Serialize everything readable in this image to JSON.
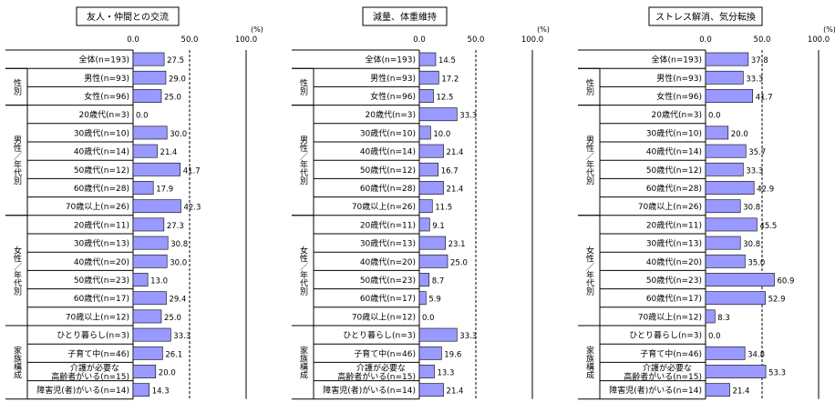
{
  "unit": "(%)",
  "axis_ticks": [
    "0.0",
    "50.0",
    "100.0"
  ],
  "rows": [
    {
      "label": "全体(n=193)"
    },
    {
      "label": "男性(n=93)"
    },
    {
      "label": "女性(n=96)"
    },
    {
      "label": "20歳代(n=3)"
    },
    {
      "label": "30歳代(n=10)"
    },
    {
      "label": "40歳代(n=14)"
    },
    {
      "label": "50歳代(n=12)"
    },
    {
      "label": "60歳代(n=28)"
    },
    {
      "label": "70歳以上(n=26)"
    },
    {
      "label": "20歳代(n=11)"
    },
    {
      "label": "30歳代(n=13)"
    },
    {
      "label": "40歳代(n=20)"
    },
    {
      "label": "50歳代(n=23)"
    },
    {
      "label": "60歳代(n=17)"
    },
    {
      "label": "70歳以上(n=12)"
    },
    {
      "label": "ひとり暮らし(n=3)"
    },
    {
      "label": "子育て中(n=46)"
    },
    {
      "label": "介護が必要な\n高齢者がいる(n=15)"
    },
    {
      "label": "障害児(者)がいる(n=14)"
    }
  ],
  "groups": [
    {
      "label": "性別",
      "from": 1,
      "to": 2
    },
    {
      "label": "男性／年代別",
      "from": 3,
      "to": 8
    },
    {
      "label": "女性／年代別",
      "from": 9,
      "to": 14
    },
    {
      "label": "家族構成",
      "from": 15,
      "to": 18
    }
  ],
  "bar_color": "#9999ff",
  "chart_data": [
    {
      "type": "bar",
      "title": "友人・仲間との交流",
      "xlim": [
        0,
        100
      ],
      "reference_line": 50,
      "categories": [
        "全体(n=193)",
        "男性(n=93)",
        "女性(n=96)",
        "男性20歳代(n=3)",
        "男性30歳代(n=10)",
        "男性40歳代(n=14)",
        "男性50歳代(n=12)",
        "男性60歳代(n=28)",
        "男性70歳以上(n=26)",
        "女性20歳代(n=11)",
        "女性30歳代(n=13)",
        "女性40歳代(n=20)",
        "女性50歳代(n=23)",
        "女性60歳代(n=17)",
        "女性70歳以上(n=12)",
        "ひとり暮らし(n=3)",
        "子育て中(n=46)",
        "介護が必要な高齢者がいる(n=15)",
        "障害児(者)がいる(n=14)"
      ],
      "values": [
        27.5,
        29.0,
        25.0,
        0.0,
        30.0,
        21.4,
        41.7,
        17.9,
        42.3,
        27.3,
        30.8,
        30.0,
        13.0,
        29.4,
        25.0,
        33.3,
        26.1,
        20.0,
        14.3
      ]
    },
    {
      "type": "bar",
      "title": "減量、体重維持",
      "xlim": [
        0,
        100
      ],
      "reference_line": 50,
      "categories": [
        "全体(n=193)",
        "男性(n=93)",
        "女性(n=96)",
        "男性20歳代(n=3)",
        "男性30歳代(n=10)",
        "男性40歳代(n=14)",
        "男性50歳代(n=12)",
        "男性60歳代(n=28)",
        "男性70歳以上(n=26)",
        "女性20歳代(n=11)",
        "女性30歳代(n=13)",
        "女性40歳代(n=20)",
        "女性50歳代(n=23)",
        "女性60歳代(n=17)",
        "女性70歳以上(n=12)",
        "ひとり暮らし(n=3)",
        "子育て中(n=46)",
        "介護が必要な高齢者がいる(n=15)",
        "障害児(者)がいる(n=14)"
      ],
      "values": [
        14.5,
        17.2,
        12.5,
        33.3,
        10.0,
        21.4,
        16.7,
        21.4,
        11.5,
        9.1,
        23.1,
        25.0,
        8.7,
        5.9,
        0.0,
        33.3,
        19.6,
        13.3,
        21.4
      ]
    },
    {
      "type": "bar",
      "title": "ストレス解消、気分転換",
      "xlim": [
        0,
        100
      ],
      "reference_line": 50,
      "categories": [
        "全体(n=193)",
        "男性(n=93)",
        "女性(n=96)",
        "男性20歳代(n=3)",
        "男性30歳代(n=10)",
        "男性40歳代(n=14)",
        "男性50歳代(n=12)",
        "男性60歳代(n=28)",
        "男性70歳以上(n=26)",
        "女性20歳代(n=11)",
        "女性30歳代(n=13)",
        "女性40歳代(n=20)",
        "女性50歳代(n=23)",
        "女性60歳代(n=17)",
        "女性70歳以上(n=12)",
        "ひとり暮らし(n=3)",
        "子育て中(n=46)",
        "介護が必要な高齢者がいる(n=15)",
        "障害児(者)がいる(n=14)"
      ],
      "values": [
        37.8,
        33.3,
        41.7,
        0.0,
        20.0,
        35.7,
        33.3,
        42.9,
        30.8,
        45.5,
        30.8,
        35.0,
        60.9,
        52.9,
        8.3,
        0.0,
        34.8,
        53.3,
        21.4
      ]
    }
  ]
}
